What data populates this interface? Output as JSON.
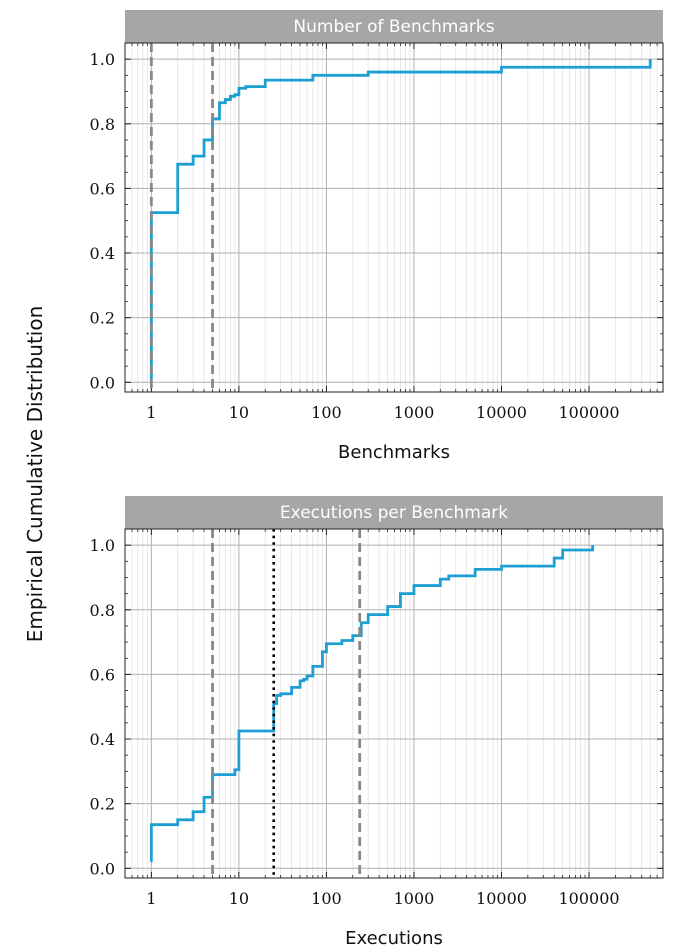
{
  "figure": {
    "ylabel": "Empirical Cumulative Distribution",
    "colors": {
      "ecdf": "#1e9fd4",
      "dashed": "#888888",
      "dotted": "#000000",
      "header_bg": "#a6a6a6",
      "grid_major": "#b0b0b0",
      "grid_minor": "#e3e3e3"
    }
  },
  "chart_data": [
    {
      "type": "line",
      "title": "Number of Benchmarks",
      "xlabel": "Benchmarks",
      "ylabel": "Empirical Cumulative Distribution",
      "xscale": "log",
      "xlim": [
        0.5,
        700000
      ],
      "ylim": [
        -0.03,
        1.05
      ],
      "xticks": [
        1,
        10,
        100,
        1000,
        10000,
        100000
      ],
      "xtick_labels": [
        "1",
        "10",
        "100",
        "1000",
        "10000",
        "100000"
      ],
      "yticks": [
        0.0,
        0.2,
        0.4,
        0.6,
        0.8,
        1.0
      ],
      "ytick_labels": [
        "0.0",
        "0.2",
        "0.4",
        "0.6",
        "0.8",
        "1.0"
      ],
      "grid": true,
      "series": [
        {
          "style": "step",
          "x": [
            1,
            1,
            2,
            3,
            4,
            5,
            6,
            7,
            8,
            9,
            10,
            12,
            20,
            70,
            300,
            10000,
            500000
          ],
          "y": [
            0.01,
            0.525,
            0.675,
            0.7,
            0.75,
            0.815,
            0.865,
            0.875,
            0.885,
            0.89,
            0.91,
            0.915,
            0.935,
            0.95,
            0.96,
            0.975,
            1.0
          ]
        }
      ],
      "vlines": [
        {
          "x": 1,
          "style": "dashed"
        },
        {
          "x": 5,
          "style": "dashed"
        }
      ]
    },
    {
      "type": "line",
      "title": "Executions per Benchmark",
      "xlabel": "Executions",
      "ylabel": "Empirical Cumulative Distribution",
      "xscale": "log",
      "xlim": [
        0.5,
        700000
      ],
      "ylim": [
        -0.03,
        1.05
      ],
      "xticks": [
        1,
        10,
        100,
        1000,
        10000,
        100000
      ],
      "xtick_labels": [
        "1",
        "10",
        "100",
        "1000",
        "10000",
        "100000"
      ],
      "yticks": [
        0.0,
        0.2,
        0.4,
        0.6,
        0.8,
        1.0
      ],
      "ytick_labels": [
        "0.0",
        "0.2",
        "0.4",
        "0.6",
        "0.8",
        "1.0"
      ],
      "grid": true,
      "series": [
        {
          "style": "step",
          "x": [
            1,
            1,
            2,
            3,
            4,
            5,
            9,
            10,
            25,
            27,
            30,
            40,
            50,
            55,
            60,
            70,
            90,
            100,
            150,
            200,
            250,
            300,
            500,
            700,
            1000,
            2000,
            2500,
            5000,
            10000,
            40000,
            50000,
            110000
          ],
          "y": [
            0.02,
            0.135,
            0.15,
            0.175,
            0.22,
            0.29,
            0.305,
            0.425,
            0.51,
            0.535,
            0.54,
            0.56,
            0.58,
            0.585,
            0.595,
            0.625,
            0.67,
            0.695,
            0.705,
            0.72,
            0.76,
            0.785,
            0.81,
            0.85,
            0.875,
            0.895,
            0.905,
            0.925,
            0.935,
            0.96,
            0.985,
            1.0
          ]
        }
      ],
      "vlines": [
        {
          "x": 5,
          "style": "dashed"
        },
        {
          "x": 25,
          "style": "dotted"
        },
        {
          "x": 240,
          "style": "dashed"
        }
      ]
    }
  ]
}
